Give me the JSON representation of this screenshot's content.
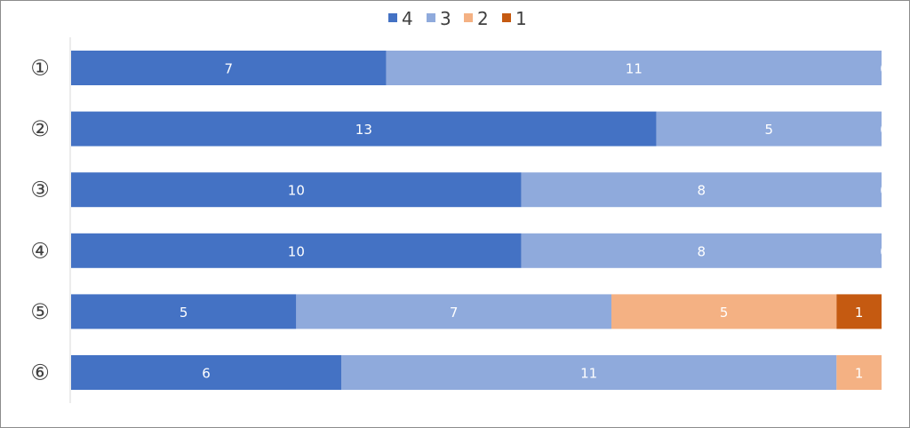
{
  "chart_data": {
    "type": "bar",
    "orientation": "horizontal",
    "stacking": "percent",
    "categories": [
      "①",
      "②",
      "③",
      "④",
      "⑤",
      "⑥"
    ],
    "series": [
      {
        "name": "4",
        "values": [
          7,
          13,
          10,
          10,
          5,
          6
        ],
        "color": "#4472c4"
      },
      {
        "name": "3",
        "values": [
          11,
          5,
          8,
          8,
          7,
          11
        ],
        "color": "#8faadc"
      },
      {
        "name": "2",
        "values": [
          0,
          0,
          0,
          0,
          5,
          1
        ],
        "color": "#f4b183"
      },
      {
        "name": "1",
        "values": [
          0,
          0,
          0,
          0,
          1,
          0
        ],
        "color": "#c55a11"
      }
    ],
    "data_labels": [
      [
        "7",
        "11",
        "0",
        ""
      ],
      [
        "13",
        "5",
        "0",
        ""
      ],
      [
        "10",
        "8",
        "0",
        ""
      ],
      [
        "10",
        "8",
        "0",
        ""
      ],
      [
        "5",
        "7",
        "5",
        "1"
      ],
      [
        "6",
        "11",
        "1",
        ""
      ]
    ],
    "legend": {
      "position": "top",
      "entries": [
        "4",
        "3",
        "2",
        "1"
      ]
    },
    "title": "",
    "xlabel": "",
    "ylabel": "",
    "grid": false
  }
}
